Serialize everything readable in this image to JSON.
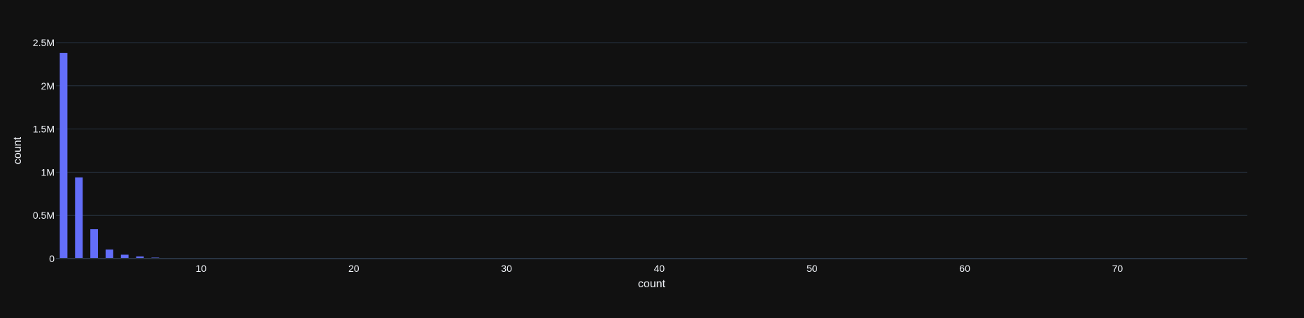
{
  "colors": {
    "background": "#111111",
    "grid": "#283442",
    "bar": "#636efa",
    "text": "#f2f5fa"
  },
  "chart_data": {
    "type": "bar",
    "title": "",
    "xlabel": "count",
    "ylabel": "count",
    "x": [
      1,
      2,
      3,
      4,
      5,
      6,
      7,
      8,
      9,
      10,
      11,
      12
    ],
    "values": [
      2380000,
      940000,
      340000,
      105000,
      45000,
      25000,
      12000,
      7000,
      4000,
      2500,
      1500,
      1000
    ],
    "xlim": [
      0.5,
      78.5
    ],
    "ylim": [
      0,
      2500000
    ],
    "x_ticks": [
      10,
      20,
      30,
      40,
      50,
      60,
      70
    ],
    "x_tick_labels": [
      "10",
      "20",
      "30",
      "40",
      "50",
      "60",
      "70"
    ],
    "y_ticks": [
      0,
      500000,
      1000000,
      1500000,
      2000000,
      2500000
    ],
    "y_tick_labels": [
      "0",
      "0.5M",
      "1M",
      "1.5M",
      "2M",
      "2.5M"
    ],
    "grid": true,
    "legend": "none"
  }
}
